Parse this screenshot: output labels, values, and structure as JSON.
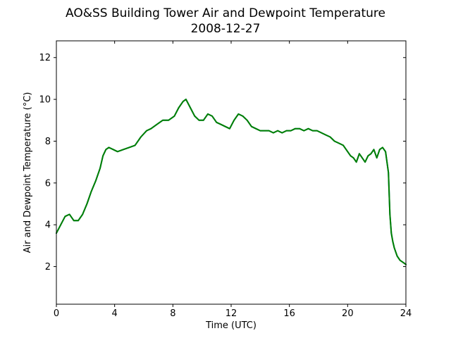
{
  "chart_data": {
    "type": "line",
    "title": "AO&SS Building Tower Air and Dewpoint Temperature",
    "subtitle": "2008-12-27",
    "xlabel": "Time (UTC)",
    "ylabel": "Air and Dewpoint Temperature (°C)",
    "xlim": [
      0,
      24
    ],
    "ylim": [
      0.2,
      12.8
    ],
    "xticks": [
      0,
      4,
      8,
      12,
      16,
      20,
      24
    ],
    "yticks": [
      2,
      4,
      6,
      8,
      10,
      12
    ],
    "grid": false,
    "series": [
      {
        "color": "#1f77b4",
        "x": [
          0.0,
          0.3,
          0.6,
          0.9,
          1.2,
          1.5,
          1.8,
          2.1,
          2.4,
          2.7,
          3.0,
          3.2,
          3.4,
          3.6,
          3.9,
          4.2,
          4.6,
          5.0,
          5.4,
          5.8,
          6.2,
          6.5,
          6.9,
          7.3,
          7.7,
          8.1,
          8.4,
          8.7,
          8.9,
          9.2,
          9.5,
          9.8,
          10.1,
          10.4,
          10.7,
          11.0,
          11.3,
          11.6,
          11.9,
          12.2,
          12.5,
          12.8,
          13.1,
          13.4,
          13.7,
          14.0,
          14.3,
          14.6,
          14.9,
          15.2,
          15.5,
          15.8,
          16.1,
          16.4,
          16.7,
          17.0,
          17.3,
          17.6,
          17.9,
          18.2,
          18.5,
          18.8,
          19.1,
          19.4,
          19.7,
          20.0,
          20.2,
          20.4,
          20.6,
          20.8,
          21.0,
          21.2,
          21.4,
          21.6,
          21.8,
          22.0,
          22.2,
          22.4,
          22.6,
          22.8,
          22.9,
          23.0,
          23.1,
          23.2,
          23.4,
          23.6,
          23.8,
          24.0
        ],
        "values": [
          3.6,
          4.0,
          4.4,
          4.5,
          4.2,
          4.2,
          4.5,
          5.0,
          5.6,
          6.1,
          6.7,
          7.3,
          7.6,
          7.7,
          7.6,
          7.5,
          7.6,
          7.7,
          7.8,
          8.2,
          8.5,
          8.6,
          8.8,
          9.0,
          9.0,
          9.2,
          9.6,
          9.9,
          10.0,
          9.6,
          9.2,
          9.0,
          9.0,
          9.3,
          9.2,
          8.9,
          8.8,
          8.7,
          8.6,
          9.0,
          9.3,
          9.2,
          9.0,
          8.7,
          8.6,
          8.5,
          8.5,
          8.5,
          8.4,
          8.5,
          8.4,
          8.5,
          8.5,
          8.6,
          8.6,
          8.5,
          8.6,
          8.5,
          8.5,
          8.4,
          8.3,
          8.2,
          8.0,
          7.9,
          7.8,
          7.5,
          7.3,
          7.2,
          7.0,
          7.4,
          7.2,
          7.0,
          7.3,
          7.4,
          7.6,
          7.2,
          7.6,
          7.7,
          7.5,
          6.5,
          4.5,
          3.6,
          3.2,
          2.9,
          2.5,
          2.3,
          2.2,
          2.1
        ]
      },
      {
        "color": "#008000",
        "x": [
          0.0,
          0.3,
          0.6,
          0.9,
          1.2,
          1.5,
          1.8,
          2.1,
          2.4,
          2.7,
          3.0,
          3.2,
          3.4,
          3.6,
          3.9,
          4.2,
          4.6,
          5.0,
          5.4,
          5.8,
          6.2,
          6.5,
          6.9,
          7.3,
          7.7,
          8.1,
          8.4,
          8.7,
          8.9,
          9.2,
          9.5,
          9.8,
          10.1,
          10.4,
          10.7,
          11.0,
          11.3,
          11.6,
          11.9,
          12.2,
          12.5,
          12.8,
          13.1,
          13.4,
          13.7,
          14.0,
          14.3,
          14.6,
          14.9,
          15.2,
          15.5,
          15.8,
          16.1,
          16.4,
          16.7,
          17.0,
          17.3,
          17.6,
          17.9,
          18.2,
          18.5,
          18.8,
          19.1,
          19.4,
          19.7,
          20.0,
          20.2,
          20.4,
          20.6,
          20.8,
          21.0,
          21.2,
          21.4,
          21.6,
          21.8,
          22.0,
          22.2,
          22.4,
          22.6,
          22.8,
          22.9,
          23.0,
          23.1,
          23.2,
          23.4,
          23.6,
          23.8,
          24.0
        ],
        "values": [
          3.6,
          4.0,
          4.4,
          4.5,
          4.2,
          4.2,
          4.5,
          5.0,
          5.6,
          6.1,
          6.7,
          7.3,
          7.6,
          7.7,
          7.6,
          7.5,
          7.6,
          7.7,
          7.8,
          8.2,
          8.5,
          8.6,
          8.8,
          9.0,
          9.0,
          9.2,
          9.6,
          9.9,
          10.0,
          9.6,
          9.2,
          9.0,
          9.0,
          9.3,
          9.2,
          8.9,
          8.8,
          8.7,
          8.6,
          9.0,
          9.3,
          9.2,
          9.0,
          8.7,
          8.6,
          8.5,
          8.5,
          8.5,
          8.4,
          8.5,
          8.4,
          8.5,
          8.5,
          8.6,
          8.6,
          8.5,
          8.6,
          8.5,
          8.5,
          8.4,
          8.3,
          8.2,
          8.0,
          7.9,
          7.8,
          7.5,
          7.3,
          7.2,
          7.0,
          7.4,
          7.2,
          7.0,
          7.3,
          7.4,
          7.6,
          7.2,
          7.6,
          7.7,
          7.5,
          6.5,
          4.5,
          3.6,
          3.2,
          2.9,
          2.5,
          2.3,
          2.2,
          2.1
        ]
      }
    ]
  }
}
